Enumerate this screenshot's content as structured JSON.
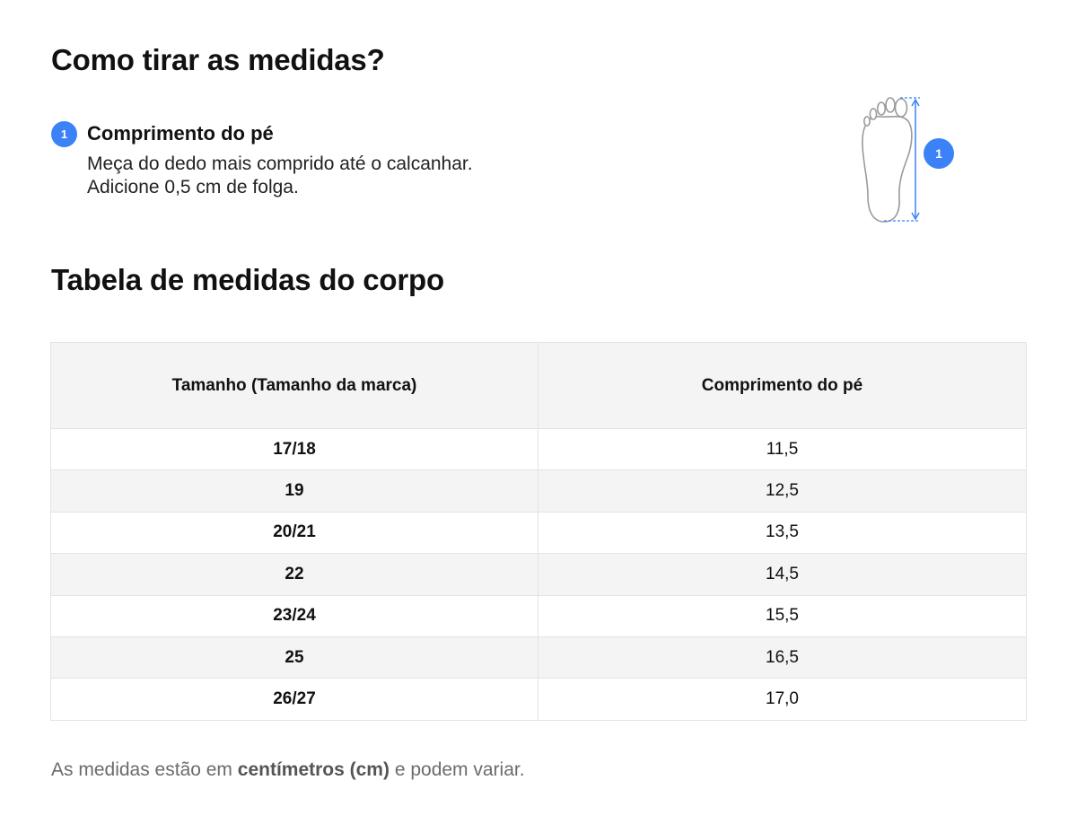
{
  "title": "Como tirar as medidas?",
  "steps": [
    {
      "number": "1",
      "title": "Comprimento do pé",
      "description": "Meça do dedo mais comprido até o calcanhar. Adicione 0,5 cm de folga."
    }
  ],
  "illustration": {
    "icon": "foot-icon",
    "marker": "1",
    "accent_color": "#3b82f6"
  },
  "table": {
    "title": "Tabela de medidas do corpo",
    "headers": [
      "Tamanho (Tamanho da marca)",
      "Comprimento do pé"
    ],
    "rows": [
      [
        "17/18",
        "11,5"
      ],
      [
        "19",
        "12,5"
      ],
      [
        "20/21",
        "13,5"
      ],
      [
        "22",
        "14,5"
      ],
      [
        "23/24",
        "15,5"
      ],
      [
        "25",
        "16,5"
      ],
      [
        "26/27",
        "17,0"
      ]
    ]
  },
  "note": {
    "prefix": "As medidas estão em ",
    "emphasis": "centímetros (cm)",
    "suffix": " e podem variar."
  }
}
